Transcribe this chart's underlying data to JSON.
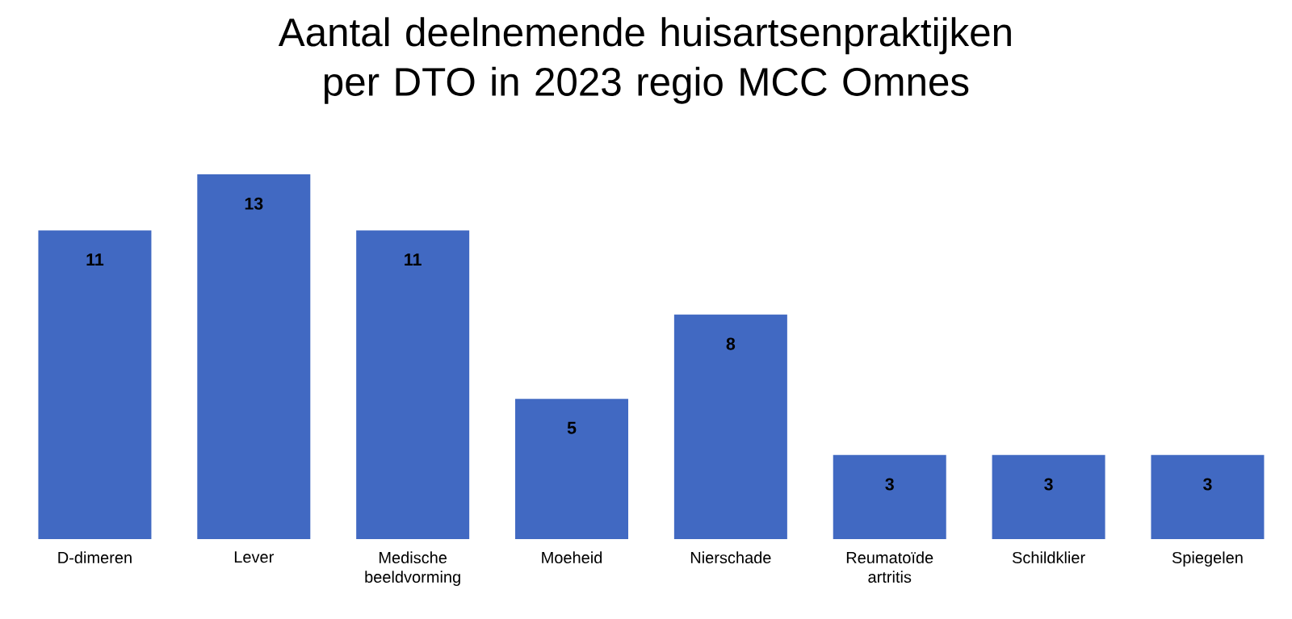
{
  "chart_data": {
    "type": "bar",
    "title": "Aantal deelnemende huisartsenpraktijken per DTO in 2023 regio MCC Omnes",
    "categories": [
      "D-dimeren",
      "Lever",
      "Medische beeldvorming",
      "Moeheid",
      "Nierschade",
      "Reumatoïde artritis",
      "Schildklier",
      "Spiegelen"
    ],
    "values": [
      11,
      13,
      11,
      5,
      8,
      3,
      3,
      3
    ],
    "color": "#4169c2",
    "data_labels": true
  }
}
